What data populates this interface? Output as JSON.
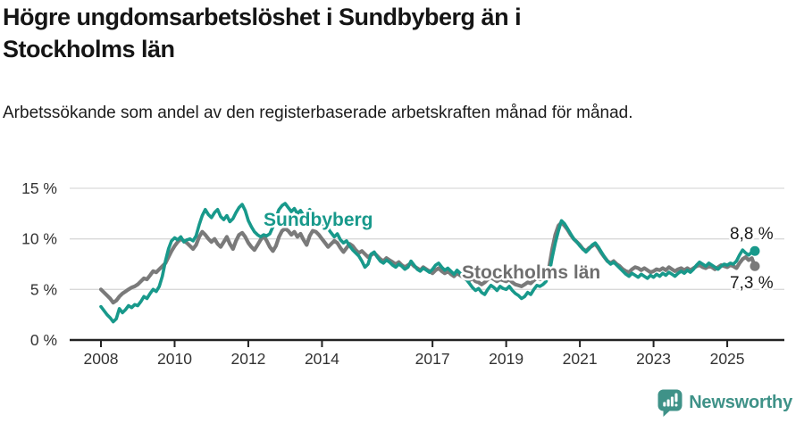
{
  "title": "Högre ungdomsarbetslöshet i Sundbyberg än i Stockholms län",
  "subtitle": "Arbetssökande som andel av den registerbaserade arbetskraften månad för månad.",
  "footer": {
    "brand": "Newsworthy",
    "brand_color": "#3f9288"
  },
  "colors": {
    "sundbyberg": "#18998b",
    "stockholm": "#7a7a7a",
    "stockholm_label": "#6f6f6f",
    "grid": "#d9d9d9",
    "axis": "#222222",
    "tick_text": "#333333",
    "end_label_text": "#1a1a1a"
  },
  "chart_data": {
    "type": "line",
    "title": "Högre ungdomsarbetslöshet i Sundbyberg än i Stockholms län",
    "subtitle": "Arbetssökande som andel av den registerbaserade arbetskraften månad för månad.",
    "unit": "%",
    "frequency": "monthly",
    "x_start": "2008-01",
    "x_end": "2025-10",
    "ylim": [
      0,
      15
    ],
    "grid": true,
    "y_ticks": [
      {
        "v": 15,
        "label": "15 %"
      },
      {
        "v": 10,
        "label": "10 %"
      },
      {
        "v": 5,
        "label": "5 %"
      },
      {
        "v": 0,
        "label": "0 %"
      }
    ],
    "x_ticks": [
      2008,
      2010,
      2012,
      2014,
      2017,
      2019,
      2021,
      2023,
      2025
    ],
    "series": [
      {
        "name": "Stockholms län",
        "color": "#7a7a7a",
        "end_label": "7,3 %",
        "latest_value": 7.3,
        "values": [
          5.0,
          4.7,
          4.4,
          4.1,
          3.7,
          3.9,
          4.3,
          4.6,
          4.8,
          5.0,
          5.2,
          5.3,
          5.5,
          5.8,
          6.1,
          6.0,
          6.4,
          6.8,
          6.7,
          7.0,
          7.3,
          7.6,
          8.2,
          8.8,
          9.3,
          9.7,
          10.0,
          9.8,
          9.6,
          9.3,
          9.0,
          9.4,
          10.2,
          10.7,
          10.4,
          10.0,
          9.7,
          10.0,
          9.5,
          9.2,
          9.7,
          10.2,
          9.5,
          9.0,
          9.8,
          10.4,
          10.6,
          10.2,
          9.6,
          9.2,
          8.9,
          9.4,
          9.9,
          10.3,
          9.8,
          9.2,
          8.8,
          9.3,
          10.2,
          10.8,
          11.0,
          10.8,
          10.4,
          10.7,
          10.2,
          10.5,
          9.9,
          9.4,
          10.3,
          10.8,
          10.7,
          10.4,
          10.0,
          9.6,
          9.2,
          9.5,
          9.8,
          9.6,
          9.1,
          8.7,
          9.1,
          9.5,
          9.3,
          8.9,
          8.6,
          8.8,
          8.5,
          8.2,
          8.4,
          8.6,
          8.3,
          8.0,
          7.8,
          8.1,
          7.9,
          7.7,
          7.5,
          7.7,
          7.4,
          7.2,
          7.4,
          7.6,
          7.3,
          7.1,
          6.9,
          7.2,
          7.0,
          6.8,
          6.6,
          6.9,
          7.1,
          6.8,
          6.6,
          6.8,
          6.5,
          6.3,
          6.6,
          6.4,
          6.2,
          6.0,
          5.9,
          6.1,
          5.8,
          5.7,
          5.5,
          5.7,
          6.0,
          6.2,
          6.0,
          5.8,
          6.0,
          5.9,
          5.8,
          6.0,
          5.7,
          5.5,
          5.4,
          5.3,
          5.5,
          5.7,
          5.6,
          5.9,
          6.1,
          6.0,
          6.2,
          6.4,
          7.2,
          9.0,
          10.4,
          11.3,
          11.6,
          11.3,
          10.9,
          10.4,
          10.0,
          9.7,
          9.4,
          9.0,
          8.8,
          9.1,
          9.3,
          9.5,
          9.1,
          8.6,
          8.2,
          7.8,
          7.6,
          7.8,
          7.5,
          7.3,
          7.0,
          6.8,
          6.7,
          7.0,
          7.2,
          7.1,
          6.9,
          7.1,
          6.9,
          6.7,
          6.8,
          7.0,
          6.9,
          7.1,
          6.9,
          7.2,
          7.0,
          6.8,
          7.0,
          7.1,
          6.9,
          7.1,
          6.9,
          7.1,
          7.3,
          7.4,
          7.2,
          7.1,
          7.3,
          7.2,
          7.0,
          7.2,
          7.4,
          7.3,
          7.2,
          7.4,
          7.3,
          7.1,
          7.6,
          8.0,
          8.2,
          7.9,
          8.1,
          7.3
        ]
      },
      {
        "name": "Sundbyberg",
        "color": "#18998b",
        "end_label": "8,8 %",
        "latest_value": 8.8,
        "values": [
          3.3,
          2.9,
          2.5,
          2.2,
          1.8,
          2.1,
          3.1,
          2.7,
          3.0,
          3.4,
          3.2,
          3.5,
          3.4,
          3.8,
          4.3,
          4.1,
          4.6,
          5.0,
          4.8,
          5.3,
          6.3,
          7.8,
          9.0,
          9.8,
          10.1,
          9.9,
          10.2,
          9.7,
          9.9,
          10.0,
          9.8,
          10.3,
          11.4,
          12.3,
          12.9,
          12.4,
          12.1,
          12.6,
          12.9,
          12.2,
          11.9,
          12.3,
          11.7,
          12.0,
          12.6,
          13.1,
          13.4,
          12.8,
          11.8,
          11.2,
          10.7,
          10.4,
          10.2,
          10.4,
          10.3,
          10.5,
          11.2,
          12.1,
          12.9,
          13.3,
          13.5,
          13.1,
          12.7,
          13.0,
          12.5,
          12.8,
          12.3,
          12.5,
          12.9,
          12.4,
          12.0,
          11.8,
          11.4,
          11.6,
          11.0,
          10.6,
          10.2,
          10.5,
          9.9,
          9.6,
          9.8,
          9.3,
          8.9,
          8.6,
          8.3,
          7.8,
          7.2,
          7.5,
          8.5,
          8.7,
          8.2,
          7.8,
          7.6,
          7.9,
          7.7,
          7.4,
          7.2,
          7.5,
          7.3,
          7.0,
          7.2,
          7.8,
          7.4,
          7.0,
          6.8,
          7.1,
          6.9,
          6.7,
          7.0,
          7.4,
          7.6,
          7.2,
          6.9,
          7.1,
          6.8,
          6.5,
          6.9,
          6.6,
          6.3,
          6.0,
          5.6,
          5.2,
          4.9,
          5.1,
          4.7,
          4.5,
          5.0,
          5.4,
          5.2,
          4.9,
          5.3,
          5.1,
          5.0,
          5.3,
          4.9,
          4.6,
          4.4,
          4.1,
          4.3,
          4.7,
          4.5,
          5.0,
          5.4,
          5.3,
          5.5,
          5.8,
          6.5,
          8.2,
          9.6,
          10.8,
          11.8,
          11.5,
          11.0,
          10.5,
          10.0,
          9.7,
          9.3,
          9.0,
          8.7,
          9.0,
          9.4,
          9.6,
          9.2,
          8.7,
          8.2,
          7.8,
          7.5,
          7.7,
          7.4,
          7.1,
          6.8,
          6.5,
          6.3,
          6.6,
          6.4,
          6.2,
          6.5,
          6.3,
          6.1,
          6.4,
          6.2,
          6.5,
          6.3,
          6.6,
          6.4,
          6.7,
          6.5,
          6.3,
          6.6,
          6.8,
          6.6,
          6.9,
          6.7,
          7.0,
          7.4,
          7.7,
          7.5,
          7.3,
          7.6,
          7.4,
          7.2,
          7.0,
          7.3,
          7.5,
          7.4,
          7.6,
          7.5,
          7.8,
          8.4,
          8.9,
          8.6,
          8.4,
          8.7,
          8.8
        ]
      }
    ],
    "legend_position": "inline-labels"
  }
}
